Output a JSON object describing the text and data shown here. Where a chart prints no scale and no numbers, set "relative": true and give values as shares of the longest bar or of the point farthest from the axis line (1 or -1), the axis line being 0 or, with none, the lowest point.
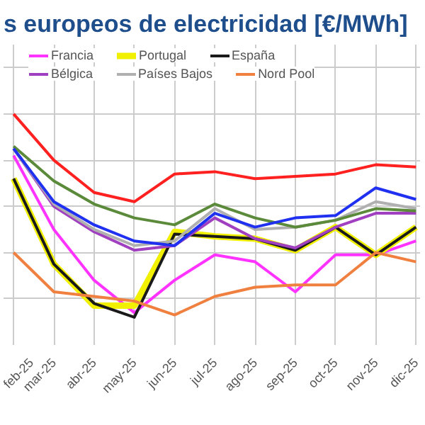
{
  "chart_data": {
    "type": "line",
    "title": "s europeos de electricidad [€/MWh]",
    "relative": true,
    "grid": true,
    "legend": "top",
    "marker": "none",
    "line_style": "solid",
    "categories": [
      "feb-25",
      "mar-25",
      "abr-25",
      "may-25",
      "jun-25",
      "jul-25",
      "ago-25",
      "sep-25",
      "oct-25",
      "nov-25",
      "dic-25"
    ],
    "series": [
      {
        "name": "Francia",
        "color": "#ff33ff",
        "values": [
          0.82,
          0.5,
          0.28,
          0.14,
          0.28,
          0.39,
          0.36,
          0.23,
          0.39,
          0.39,
          0.45
        ]
      },
      {
        "name": "Portugal",
        "color": "#f0f000",
        "values": [
          0.72,
          0.35,
          0.17,
          0.17,
          0.49,
          0.47,
          0.46,
          0.41,
          0.51,
          0.39,
          0.51
        ]
      },
      {
        "name": "España",
        "color": "#1a1a1a",
        "values": [
          0.72,
          0.35,
          0.18,
          0.12,
          0.48,
          0.47,
          0.46,
          0.41,
          0.51,
          0.39,
          0.51
        ]
      },
      {
        "color": "#ff2020",
        "values": [
          1.0,
          0.8,
          0.66,
          0.62,
          0.74,
          0.75,
          0.72,
          0.73,
          0.74,
          0.78,
          0.77
        ]
      },
      {
        "name": "Bélgica",
        "color": "#a040c0",
        "values": [
          0.85,
          0.6,
          0.49,
          0.41,
          0.43,
          0.55,
          0.46,
          0.42,
          0.51,
          0.57,
          0.57
        ]
      },
      {
        "name": "Países Bajos",
        "color": "#b0b0b0",
        "values": [
          0.85,
          0.61,
          0.5,
          0.43,
          0.45,
          0.59,
          0.5,
          0.51,
          0.54,
          0.62,
          0.59
        ]
      },
      {
        "name": "Nord Pool",
        "color": "#f08040",
        "values": [
          0.4,
          0.23,
          0.21,
          0.19,
          0.13,
          0.21,
          0.25,
          0.26,
          0.26,
          0.4,
          0.36
        ]
      },
      {
        "color": "#5a8a3a",
        "values": [
          0.86,
          0.71,
          0.61,
          0.55,
          0.52,
          0.61,
          0.55,
          0.51,
          0.54,
          0.59,
          0.58
        ]
      },
      {
        "color": "#2030f0",
        "values": [
          0.85,
          0.62,
          0.52,
          0.45,
          0.43,
          0.57,
          0.51,
          0.55,
          0.56,
          0.68,
          0.63
        ]
      }
    ]
  }
}
